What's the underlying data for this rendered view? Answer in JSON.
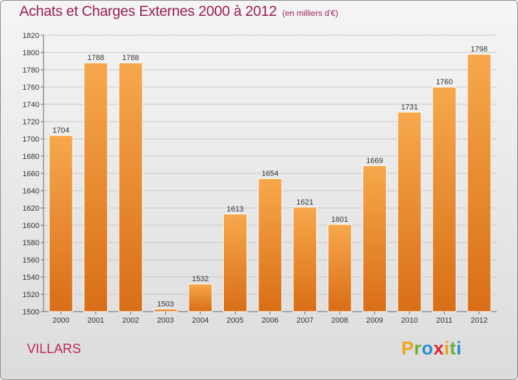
{
  "title": "Achats et Charges Externes 2000 à 2012",
  "subtitle": "(en milliers d'€)",
  "location": "VILLARS",
  "logo_text": "Proxiti",
  "colors": {
    "bar": "#f29a3c",
    "bar_dark": "#e07b20",
    "title": "#9a1e58",
    "location": "#c4255f"
  },
  "chart_data": {
    "type": "bar",
    "categories": [
      "2000",
      "2001",
      "2002",
      "2003",
      "2004",
      "2005",
      "2006",
      "2007",
      "2008",
      "2009",
      "2010",
      "2011",
      "2012"
    ],
    "values": [
      1704,
      1788,
      1788,
      1503,
      1532,
      1613,
      1654,
      1621,
      1601,
      1669,
      1731,
      1760,
      1798
    ],
    "ylim": [
      1500,
      1820
    ],
    "yticks": [
      1500,
      1520,
      1540,
      1560,
      1580,
      1600,
      1620,
      1640,
      1660,
      1680,
      1700,
      1720,
      1740,
      1760,
      1780,
      1800,
      1820
    ],
    "grid": true
  }
}
